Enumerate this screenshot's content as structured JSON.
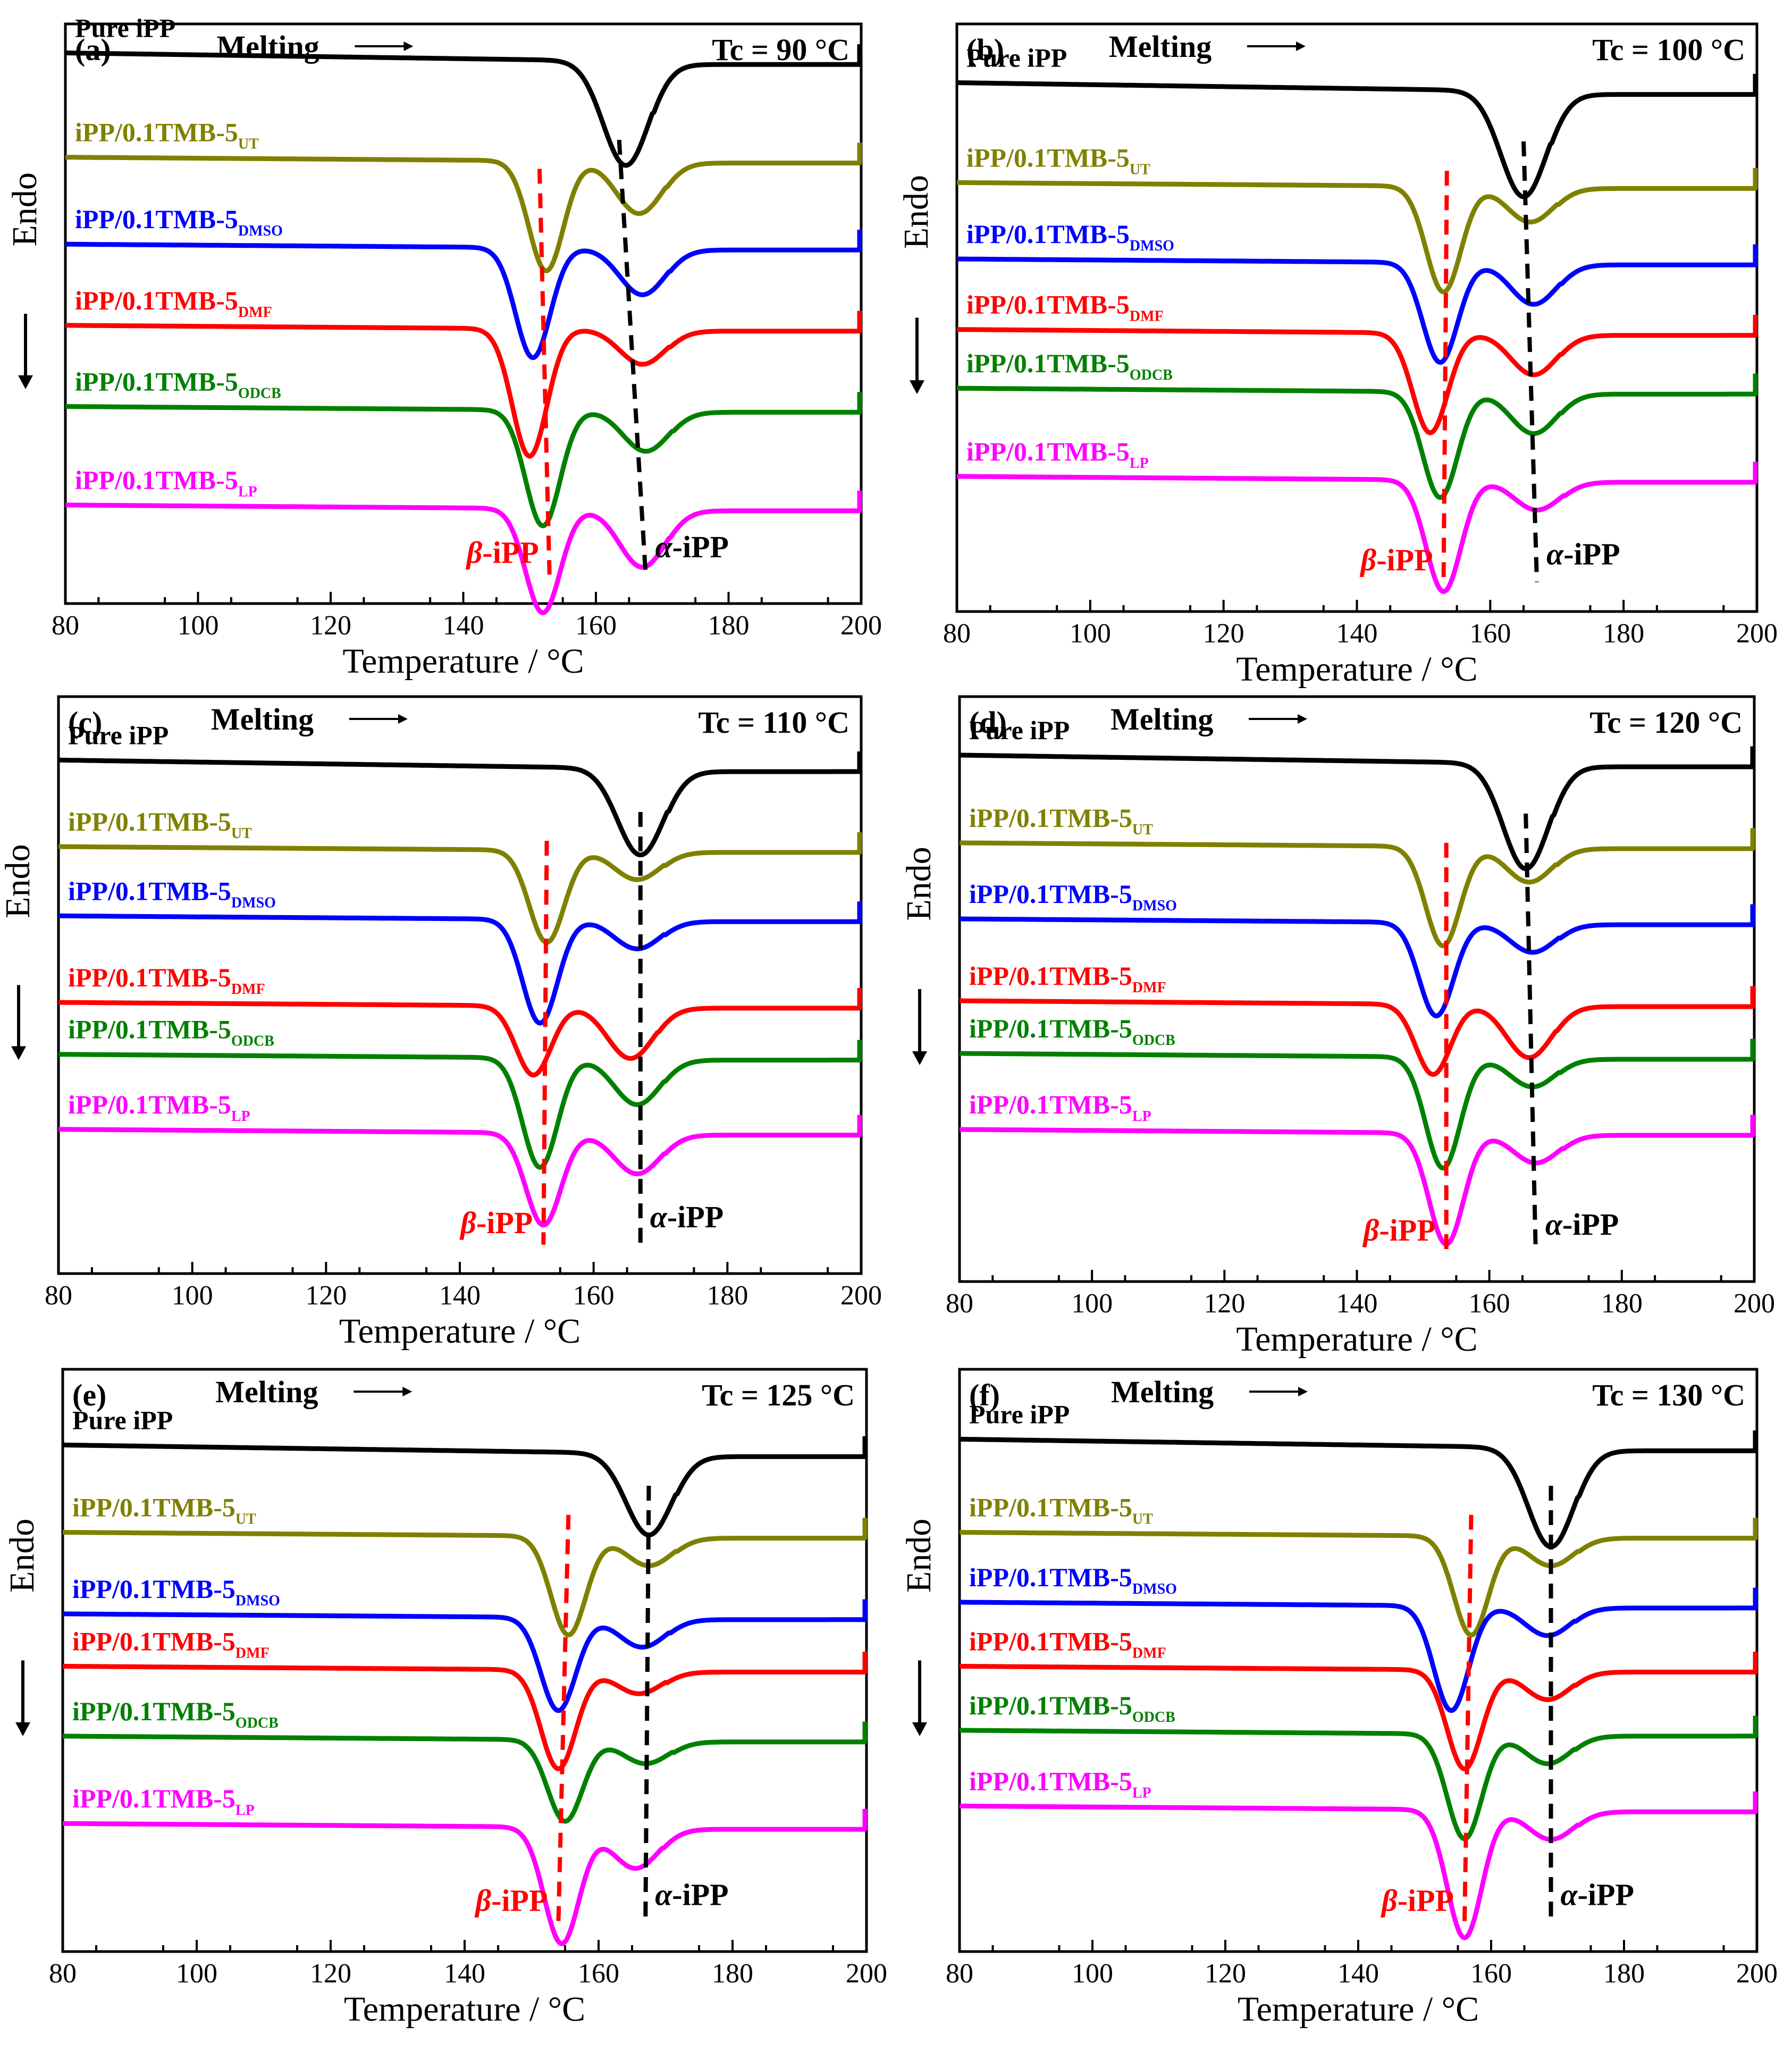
{
  "figure": {
    "colors": {
      "pure": "#000000",
      "ut": "#808000",
      "dmso": "#0000ff",
      "dmf": "#ff0000",
      "odcb": "#008000",
      "lp": "#ff00ff",
      "beta_marker": "#ff0000",
      "alpha_marker": "#000000"
    },
    "common": {
      "melting_label": "Melting",
      "arrow_glyph": "→",
      "endo_label": "Endo",
      "xlabel": "Temperature / °C",
      "beta_greek": "β",
      "beta_suffix": "-iPP",
      "alpha_greek": "α",
      "alpha_suffix": "-iPP",
      "sample_prefix": "iPP/0.1TMB-5",
      "pure_label": "Pure iPP",
      "subscripts": [
        "UT",
        "DMSO",
        "DMF",
        "ODCB",
        "LP"
      ]
    }
  },
  "chart_data": [
    {
      "type": "line",
      "panel": "(a)",
      "title": "Tc = 90 °C",
      "xlabel": "Temperature / °C",
      "ylabel": "Endo",
      "xlim": [
        80,
        200
      ],
      "xticks": [
        80,
        100,
        120,
        140,
        160,
        180,
        200
      ],
      "y_units": "relative heat flow (arbitrary, offset)",
      "series": [
        {
          "name": "Pure iPP",
          "baseline": 0.93,
          "slope": 0.02,
          "peaks": [
            {
              "t": 164.5,
              "depth": 0.18
            }
          ]
        },
        {
          "name": "iPP/0.1TMB-5 UT",
          "baseline": 0.76,
          "slope": 0.01,
          "peaks": [
            {
              "t": 152.5,
              "depth": 0.19
            },
            {
              "t": 166.5,
              "depth": 0.09
            }
          ]
        },
        {
          "name": "iPP/0.1TMB-5 DMSO",
          "baseline": 0.61,
          "slope": 0.01,
          "peaks": [
            {
              "t": 150.5,
              "depth": 0.19
            },
            {
              "t": 167.0,
              "depth": 0.08
            }
          ]
        },
        {
          "name": "iPP/0.1TMB-5 DMF",
          "baseline": 0.47,
          "slope": 0.01,
          "peaks": [
            {
              "t": 150.0,
              "depth": 0.22
            },
            {
              "t": 167.0,
              "depth": 0.06
            }
          ]
        },
        {
          "name": "iPP/0.1TMB-5 ODCB",
          "baseline": 0.33,
          "slope": 0.01,
          "peaks": [
            {
              "t": 152.0,
              "depth": 0.2
            },
            {
              "t": 167.5,
              "depth": 0.07
            }
          ]
        },
        {
          "name": "iPP/0.1TMB-5 LP",
          "baseline": 0.16,
          "slope": 0.01,
          "peaks": [
            {
              "t": 152.0,
              "depth": 0.18
            },
            {
              "t": 167.0,
              "depth": 0.1
            }
          ]
        }
      ],
      "beta_marker_t": [
        151.5,
        153.0
      ],
      "alpha_marker_t": [
        163.5,
        167.5
      ]
    },
    {
      "type": "line",
      "panel": "(b)",
      "title": "Tc = 100 °C",
      "xlabel": "Temperature / °C",
      "ylabel": "Endo",
      "xlim": [
        80,
        200
      ],
      "xticks": [
        80,
        100,
        120,
        140,
        160,
        180,
        200
      ],
      "y_units": "relative heat flow (arbitrary, offset)",
      "series": [
        {
          "name": "Pure iPP",
          "baseline": 0.88,
          "slope": 0.02,
          "peaks": [
            {
              "t": 165.0,
              "depth": 0.18
            }
          ]
        },
        {
          "name": "iPP/0.1TMB-5 UT",
          "baseline": 0.72,
          "slope": 0.01,
          "peaks": [
            {
              "t": 153.0,
              "depth": 0.18
            },
            {
              "t": 166.0,
              "depth": 0.06
            }
          ]
        },
        {
          "name": "iPP/0.1TMB-5 DMSO",
          "baseline": 0.59,
          "slope": 0.01,
          "peaks": [
            {
              "t": 152.5,
              "depth": 0.17
            },
            {
              "t": 166.5,
              "depth": 0.07
            }
          ]
        },
        {
          "name": "iPP/0.1TMB-5 DMF",
          "baseline": 0.47,
          "slope": 0.01,
          "peaks": [
            {
              "t": 151.0,
              "depth": 0.17
            },
            {
              "t": 166.5,
              "depth": 0.07
            }
          ]
        },
        {
          "name": "iPP/0.1TMB-5 ODCB",
          "baseline": 0.37,
          "slope": 0.01,
          "peaks": [
            {
              "t": 152.5,
              "depth": 0.18
            },
            {
              "t": 166.5,
              "depth": 0.07
            }
          ]
        },
        {
          "name": "iPP/0.1TMB-5 LP",
          "baseline": 0.22,
          "slope": 0.01,
          "peaks": [
            {
              "t": 153.0,
              "depth": 0.19
            },
            {
              "t": 167.0,
              "depth": 0.05
            }
          ]
        }
      ],
      "beta_marker_t": [
        153.5,
        153.0
      ],
      "alpha_marker_t": [
        165.0,
        167.0
      ]
    },
    {
      "type": "line",
      "panel": "(c)",
      "title": "Tc = 110 °C",
      "xlabel": "Temperature / °C",
      "ylabel": "Endo",
      "xlim": [
        80,
        200
      ],
      "xticks": [
        80,
        100,
        120,
        140,
        160,
        180,
        200
      ],
      "y_units": "relative heat flow (arbitrary, offset)",
      "series": [
        {
          "name": "Pure iPP",
          "baseline": 0.87,
          "slope": 0.02,
          "peaks": [
            {
              "t": 167.0,
              "depth": 0.15
            }
          ]
        },
        {
          "name": "iPP/0.1TMB-5 UT",
          "baseline": 0.73,
          "slope": 0.01,
          "peaks": [
            {
              "t": 153.0,
              "depth": 0.16
            },
            {
              "t": 166.5,
              "depth": 0.05
            }
          ]
        },
        {
          "name": "iPP/0.1TMB-5 DMSO",
          "baseline": 0.61,
          "slope": 0.01,
          "peaks": [
            {
              "t": 152.0,
              "depth": 0.18
            },
            {
              "t": 166.5,
              "depth": 0.05
            }
          ]
        },
        {
          "name": "iPP/0.1TMB-5 DMF",
          "baseline": 0.46,
          "slope": 0.01,
          "peaks": [
            {
              "t": 151.0,
              "depth": 0.12
            },
            {
              "t": 165.5,
              "depth": 0.09
            }
          ]
        },
        {
          "name": "iPP/0.1TMB-5 ODCB",
          "baseline": 0.37,
          "slope": 0.01,
          "peaks": [
            {
              "t": 152.0,
              "depth": 0.19
            },
            {
              "t": 166.5,
              "depth": 0.08
            }
          ]
        },
        {
          "name": "iPP/0.1TMB-5 LP",
          "baseline": 0.24,
          "slope": 0.01,
          "peaks": [
            {
              "t": 152.5,
              "depth": 0.16
            },
            {
              "t": 166.5,
              "depth": 0.07
            }
          ]
        }
      ],
      "beta_marker_t": [
        153.0,
        152.5
      ],
      "alpha_marker_t": [
        167.0,
        167.0
      ]
    },
    {
      "type": "line",
      "panel": "(d)",
      "title": "Tc = 120 °C",
      "xlabel": "Temperature / °C",
      "ylabel": "Endo",
      "xlim": [
        80,
        200
      ],
      "xticks": [
        80,
        100,
        120,
        140,
        160,
        180,
        200
      ],
      "y_units": "relative heat flow (arbitrary, offset)",
      "series": [
        {
          "name": "Pure iPP",
          "baseline": 0.88,
          "slope": 0.02,
          "peaks": [
            {
              "t": 165.5,
              "depth": 0.18
            }
          ]
        },
        {
          "name": "iPP/0.1TMB-5 UT",
          "baseline": 0.74,
          "slope": 0.01,
          "peaks": [
            {
              "t": 153.0,
              "depth": 0.17
            },
            {
              "t": 166.0,
              "depth": 0.06
            }
          ]
        },
        {
          "name": "iPP/0.1TMB-5 DMSO",
          "baseline": 0.61,
          "slope": 0.01,
          "peaks": [
            {
              "t": 152.0,
              "depth": 0.16
            },
            {
              "t": 166.5,
              "depth": 0.05
            }
          ]
        },
        {
          "name": "iPP/0.1TMB-5 DMF",
          "baseline": 0.47,
          "slope": 0.01,
          "peaks": [
            {
              "t": 151.5,
              "depth": 0.12
            },
            {
              "t": 166.0,
              "depth": 0.09
            }
          ]
        },
        {
          "name": "iPP/0.1TMB-5 ODCB",
          "baseline": 0.38,
          "slope": 0.01,
          "peaks": [
            {
              "t": 153.0,
              "depth": 0.19
            },
            {
              "t": 166.5,
              "depth": 0.05
            }
          ]
        },
        {
          "name": "iPP/0.1TMB-5 LP",
          "baseline": 0.25,
          "slope": 0.01,
          "peaks": [
            {
              "t": 153.5,
              "depth": 0.19
            },
            {
              "t": 167.0,
              "depth": 0.05
            }
          ]
        }
      ],
      "beta_marker_t": [
        153.5,
        153.5
      ],
      "alpha_marker_t": [
        165.5,
        167.0
      ]
    },
    {
      "type": "line",
      "panel": "(e)",
      "title": "Tc = 125 °C",
      "xlabel": "Temperature / °C",
      "ylabel": "Endo",
      "xlim": [
        80,
        200
      ],
      "xticks": [
        80,
        100,
        120,
        140,
        160,
        180,
        200
      ],
      "y_units": "relative heat flow (arbitrary, offset)",
      "series": [
        {
          "name": "Pure iPP",
          "baseline": 0.85,
          "slope": 0.02,
          "peaks": [
            {
              "t": 167.5,
              "depth": 0.14
            }
          ]
        },
        {
          "name": "iPP/0.1TMB-5 UT",
          "baseline": 0.71,
          "slope": 0.01,
          "peaks": [
            {
              "t": 155.5,
              "depth": 0.17
            },
            {
              "t": 167.5,
              "depth": 0.05
            }
          ]
        },
        {
          "name": "iPP/0.1TMB-5 DMSO",
          "baseline": 0.57,
          "slope": 0.01,
          "peaks": [
            {
              "t": 154.0,
              "depth": 0.16
            },
            {
              "t": 166.5,
              "depth": 0.05
            }
          ]
        },
        {
          "name": "iPP/0.1TMB-5 DMF",
          "baseline": 0.48,
          "slope": 0.01,
          "peaks": [
            {
              "t": 154.0,
              "depth": 0.17
            },
            {
              "t": 166.0,
              "depth": 0.04
            }
          ]
        },
        {
          "name": "iPP/0.1TMB-5 ODCB",
          "baseline": 0.36,
          "slope": 0.01,
          "peaks": [
            {
              "t": 155.0,
              "depth": 0.14
            },
            {
              "t": 167.0,
              "depth": 0.04
            }
          ]
        },
        {
          "name": "iPP/0.1TMB-5 LP",
          "baseline": 0.21,
          "slope": 0.01,
          "peaks": [
            {
              "t": 154.5,
              "depth": 0.2
            },
            {
              "t": 165.5,
              "depth": 0.07
            }
          ]
        }
      ],
      "beta_marker_t": [
        155.5,
        154.0
      ],
      "alpha_marker_t": [
        167.5,
        167.0
      ]
    },
    {
      "type": "line",
      "panel": "(f)",
      "title": "Tc = 130 °C",
      "xlabel": "Temperature / °C",
      "ylabel": "Endo",
      "xlim": [
        80,
        200
      ],
      "xticks": [
        80,
        100,
        120,
        140,
        160,
        180,
        200
      ],
      "y_units": "relative heat flow (arbitrary, offset)",
      "series": [
        {
          "name": "Pure iPP",
          "baseline": 0.86,
          "slope": 0.02,
          "peaks": [
            {
              "t": 169.0,
              "depth": 0.17
            }
          ]
        },
        {
          "name": "iPP/0.1TMB-5 UT",
          "baseline": 0.71,
          "slope": 0.01,
          "peaks": [
            {
              "t": 157.0,
              "depth": 0.17
            },
            {
              "t": 169.0,
              "depth": 0.05
            }
          ]
        },
        {
          "name": "iPP/0.1TMB-5 DMSO",
          "baseline": 0.59,
          "slope": 0.01,
          "peaks": [
            {
              "t": 154.0,
              "depth": 0.18
            },
            {
              "t": 168.5,
              "depth": 0.05
            }
          ]
        },
        {
          "name": "iPP/0.1TMB-5 DMF",
          "baseline": 0.48,
          "slope": 0.01,
          "peaks": [
            {
              "t": 156.0,
              "depth": 0.17
            },
            {
              "t": 168.5,
              "depth": 0.05
            }
          ]
        },
        {
          "name": "iPP/0.1TMB-5 ODCB",
          "baseline": 0.37,
          "slope": 0.01,
          "peaks": [
            {
              "t": 156.0,
              "depth": 0.18
            },
            {
              "t": 168.5,
              "depth": 0.05
            }
          ]
        },
        {
          "name": "iPP/0.1TMB-5 LP",
          "baseline": 0.24,
          "slope": 0.01,
          "peaks": [
            {
              "t": 156.0,
              "depth": 0.22
            },
            {
              "t": 169.0,
              "depth": 0.05
            }
          ]
        }
      ],
      "beta_marker_t": [
        157.0,
        156.0
      ],
      "alpha_marker_t": [
        169.0,
        169.0
      ]
    }
  ]
}
